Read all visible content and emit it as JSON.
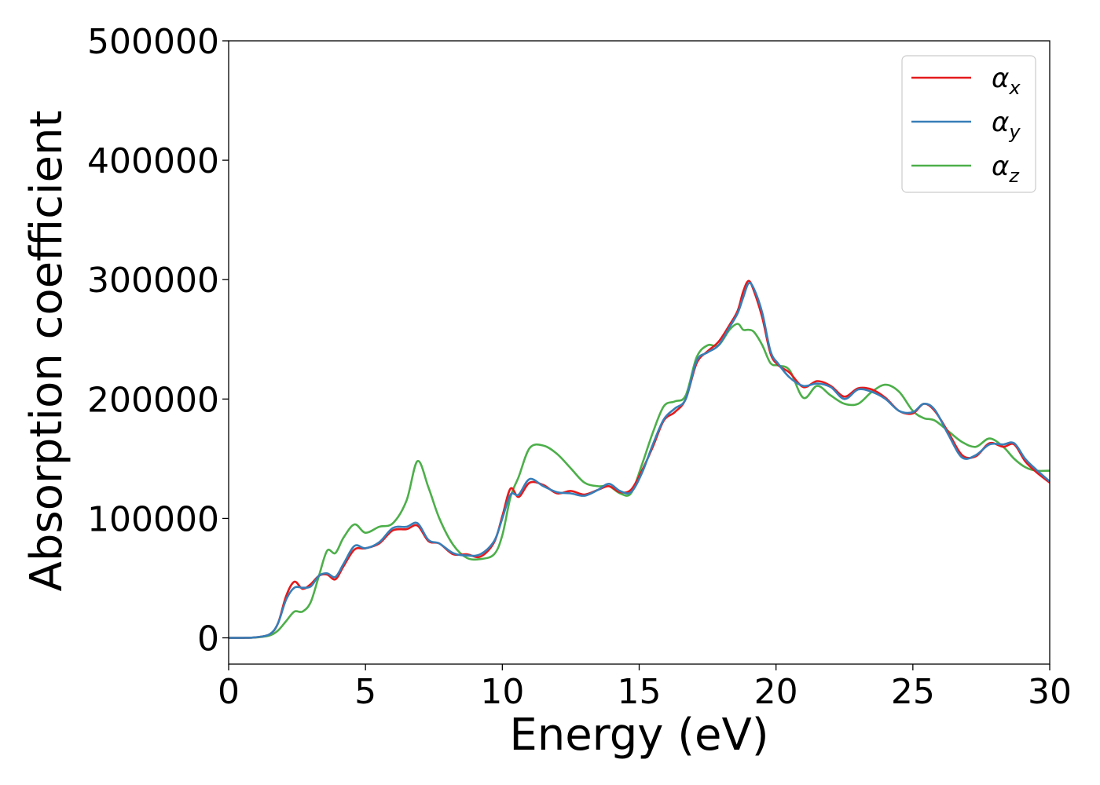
{
  "chart_data": {
    "type": "line",
    "xlabel": "Energy (eV)",
    "ylabel": "Absorption coefficient",
    "xlim": [
      0,
      30
    ],
    "ylim": [
      -22000,
      500000
    ],
    "xticks": [
      0,
      5,
      10,
      15,
      20,
      25,
      30
    ],
    "yticks": [
      0,
      100000,
      200000,
      300000,
      400000,
      500000
    ],
    "grid": false,
    "legend_position": "top-right",
    "series": [
      {
        "name": "α_x",
        "legend_base": "α",
        "legend_sub": "x",
        "color": "#e41a1c",
        "x": [
          0,
          0.5,
          1,
          1.5,
          1.8,
          2.1,
          2.4,
          2.7,
          3.0,
          3.3,
          3.6,
          3.9,
          4.2,
          4.6,
          5.0,
          5.5,
          6.0,
          6.5,
          6.9,
          7.3,
          7.7,
          8.2,
          8.7,
          9.2,
          9.7,
          10.0,
          10.3,
          10.6,
          11.0,
          11.5,
          12.0,
          12.5,
          13.0,
          13.5,
          13.9,
          14.3,
          14.7,
          15.1,
          15.5,
          15.9,
          16.3,
          16.7,
          17.1,
          17.5,
          17.9,
          18.3,
          18.6,
          18.8,
          19.0,
          19.2,
          19.5,
          19.8,
          20.1,
          20.5,
          21.0,
          21.5,
          22.0,
          22.5,
          23.0,
          23.5,
          24.0,
          24.5,
          25.0,
          25.4,
          25.8,
          26.3,
          26.8,
          27.3,
          27.8,
          28.3,
          28.7,
          29.1,
          29.5,
          30.0
        ],
        "y": [
          0,
          0,
          500,
          3000,
          12000,
          35000,
          47000,
          41000,
          45000,
          52000,
          53000,
          49000,
          60000,
          74000,
          75000,
          79000,
          90000,
          91000,
          94000,
          81000,
          79000,
          70000,
          70000,
          68000,
          80000,
          102000,
          125000,
          118000,
          130000,
          128000,
          121000,
          123000,
          120000,
          124000,
          127000,
          122000,
          124000,
          140000,
          160000,
          182000,
          189000,
          200000,
          230000,
          240000,
          248000,
          262000,
          274000,
          290000,
          299000,
          290000,
          268000,
          238000,
          228000,
          222000,
          210000,
          215000,
          211000,
          202000,
          209000,
          208000,
          201000,
          190000,
          188000,
          196000,
          190000,
          172000,
          153000,
          152000,
          163000,
          160000,
          162000,
          148000,
          139000,
          130000
        ]
      },
      {
        "name": "α_y",
        "legend_base": "α",
        "legend_sub": "y",
        "color": "#377eb8",
        "x": [
          0,
          0.5,
          1,
          1.5,
          1.8,
          2.1,
          2.4,
          2.7,
          3.0,
          3.3,
          3.6,
          3.9,
          4.2,
          4.6,
          5.0,
          5.5,
          6.0,
          6.5,
          6.9,
          7.3,
          7.7,
          8.2,
          8.7,
          9.2,
          9.7,
          10.0,
          10.3,
          10.6,
          11.0,
          11.5,
          12.0,
          12.5,
          13.0,
          13.5,
          13.9,
          14.3,
          14.7,
          15.1,
          15.5,
          15.9,
          16.3,
          16.7,
          17.1,
          17.5,
          17.9,
          18.3,
          18.6,
          18.8,
          19.0,
          19.2,
          19.5,
          19.8,
          20.1,
          20.5,
          21.0,
          21.5,
          22.0,
          22.5,
          23.0,
          23.5,
          24.0,
          24.5,
          25.0,
          25.4,
          25.8,
          26.3,
          26.8,
          27.3,
          27.8,
          28.3,
          28.7,
          29.1,
          29.5,
          30.0
        ],
        "y": [
          0,
          0,
          500,
          3000,
          12000,
          32000,
          42000,
          42000,
          43000,
          52000,
          54000,
          51000,
          62000,
          77000,
          75000,
          80000,
          92000,
          93000,
          96000,
          82000,
          79000,
          71000,
          69000,
          70000,
          81000,
          100000,
          120000,
          120000,
          133000,
          127000,
          122000,
          121000,
          119000,
          124000,
          129000,
          123000,
          122000,
          138000,
          162000,
          183000,
          192000,
          200000,
          232000,
          239000,
          245000,
          260000,
          272000,
          285000,
          297000,
          292000,
          272000,
          240000,
          229000,
          218000,
          211000,
          213000,
          210000,
          200000,
          208000,
          206000,
          200000,
          190000,
          189000,
          196000,
          191000,
          170000,
          151000,
          153000,
          162000,
          162000,
          163000,
          150000,
          141000,
          131000
        ]
      },
      {
        "name": "α_z",
        "legend_base": "α",
        "legend_sub": "z",
        "color": "#4daf4a",
        "x": [
          0,
          0.5,
          1,
          1.5,
          1.8,
          2.1,
          2.4,
          2.7,
          3.0,
          3.3,
          3.6,
          3.9,
          4.2,
          4.6,
          5.0,
          5.5,
          6.0,
          6.5,
          6.9,
          7.3,
          7.7,
          8.2,
          8.7,
          9.2,
          9.7,
          10.0,
          10.3,
          10.6,
          11.0,
          11.5,
          12.0,
          12.5,
          13.0,
          13.5,
          13.9,
          14.3,
          14.7,
          15.1,
          15.5,
          15.9,
          16.3,
          16.7,
          17.1,
          17.5,
          17.9,
          18.3,
          18.6,
          18.8,
          19.0,
          19.2,
          19.5,
          19.8,
          20.1,
          20.5,
          21.0,
          21.5,
          22.0,
          22.5,
          23.0,
          23.5,
          24.0,
          24.5,
          25.0,
          25.4,
          25.8,
          26.3,
          26.8,
          27.3,
          27.8,
          28.3,
          28.7,
          29.1,
          29.5,
          30.0
        ],
        "y": [
          0,
          0,
          300,
          2000,
          6000,
          14000,
          22000,
          22000,
          30000,
          52000,
          73000,
          71000,
          84000,
          95000,
          88000,
          93000,
          96000,
          115000,
          148000,
          126000,
          100000,
          78000,
          67000,
          66000,
          70000,
          86000,
          118000,
          135000,
          159000,
          161000,
          154000,
          142000,
          130000,
          127000,
          127000,
          121000,
          121000,
          145000,
          172000,
          194000,
          198000,
          203000,
          235000,
          245000,
          245000,
          258000,
          263000,
          258000,
          258000,
          256000,
          245000,
          230000,
          228000,
          224000,
          201000,
          211000,
          203000,
          196000,
          196000,
          206000,
          212000,
          206000,
          190000,
          184000,
          182000,
          173000,
          164000,
          160000,
          167000,
          160000,
          150000,
          143000,
          140000,
          140000
        ]
      }
    ]
  }
}
